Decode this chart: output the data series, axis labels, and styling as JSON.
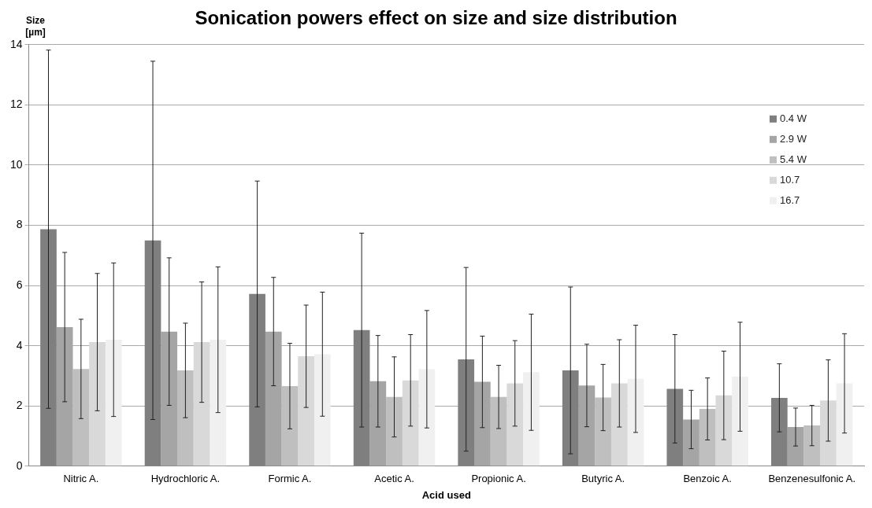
{
  "chart_data": {
    "type": "bar",
    "title": "Sonication powers effect on size and size distribution",
    "xlabel": "Acid used",
    "ylabel": "Size\n[µm]",
    "categories": [
      "Nitric A.",
      "Hydrochloric A.",
      "Formic A.",
      "Acetic A.",
      "Propionic A.",
      "Butyric A.",
      "Benzoic A.",
      "Benzenesulfonic A."
    ],
    "series": [
      {
        "name": "0.4 W",
        "color": "#7f7f7f",
        "values": [
          7.87,
          7.5,
          5.72,
          4.52,
          3.55,
          3.18,
          2.57,
          2.27
        ],
        "errors": [
          5.95,
          5.95,
          3.75,
          3.22,
          3.05,
          2.77,
          1.8,
          1.13
        ]
      },
      {
        "name": "2.9 W",
        "color": "#a5a5a5",
        "values": [
          4.62,
          4.47,
          4.47,
          2.82,
          2.8,
          2.68,
          1.55,
          1.3
        ],
        "errors": [
          2.48,
          2.45,
          1.8,
          1.52,
          1.52,
          1.37,
          0.97,
          0.63
        ]
      },
      {
        "name": "5.4 W",
        "color": "#bfbfbf",
        "values": [
          3.23,
          3.18,
          2.66,
          2.3,
          2.3,
          2.28,
          1.9,
          1.35
        ],
        "errors": [
          1.65,
          1.57,
          1.42,
          1.33,
          1.05,
          1.1,
          1.03,
          0.67
        ]
      },
      {
        "name": "10.7",
        "color": "#d9d9d9",
        "values": [
          4.12,
          4.12,
          3.65,
          2.85,
          2.75,
          2.75,
          2.35,
          2.18
        ],
        "errors": [
          2.28,
          2.0,
          1.7,
          1.52,
          1.42,
          1.45,
          1.47,
          1.35
        ]
      },
      {
        "name": "16.7",
        "color": "#f0f0f0",
        "values": [
          4.2,
          4.2,
          3.72,
          3.22,
          3.12,
          2.9,
          2.97,
          2.75
        ],
        "errors": [
          2.55,
          2.42,
          2.06,
          1.95,
          1.93,
          1.78,
          1.81,
          1.65
        ]
      }
    ],
    "ylim": [
      0,
      14
    ],
    "yticks": [
      0,
      2,
      4,
      6,
      8,
      10,
      12,
      14
    ],
    "grid": "y",
    "legend": "top right"
  }
}
